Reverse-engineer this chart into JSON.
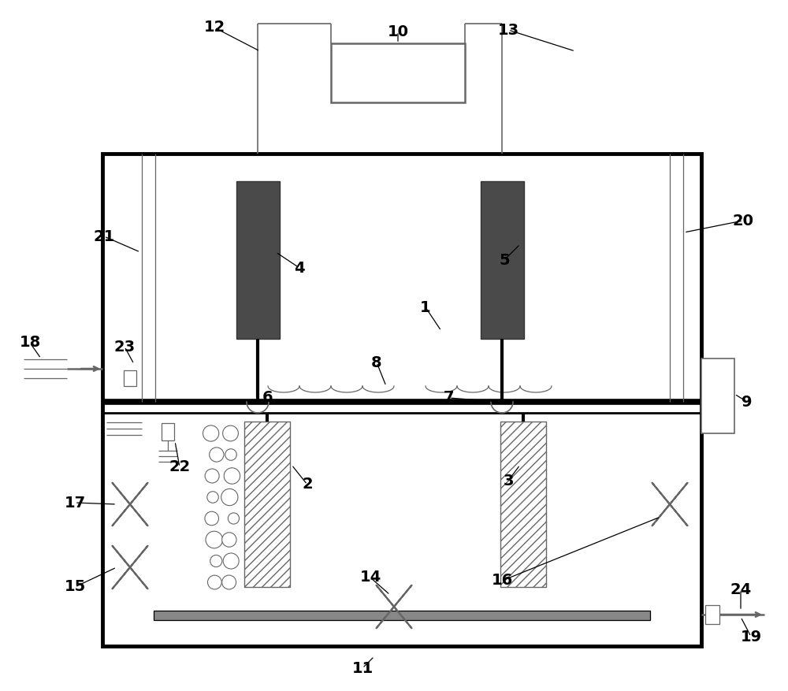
{
  "bg": "#ffffff",
  "black": "#000000",
  "dark_elec": "#4a4a4a",
  "gray_line": "#666666",
  "hatch_color": "#555555",
  "plate_color": "#888888"
}
